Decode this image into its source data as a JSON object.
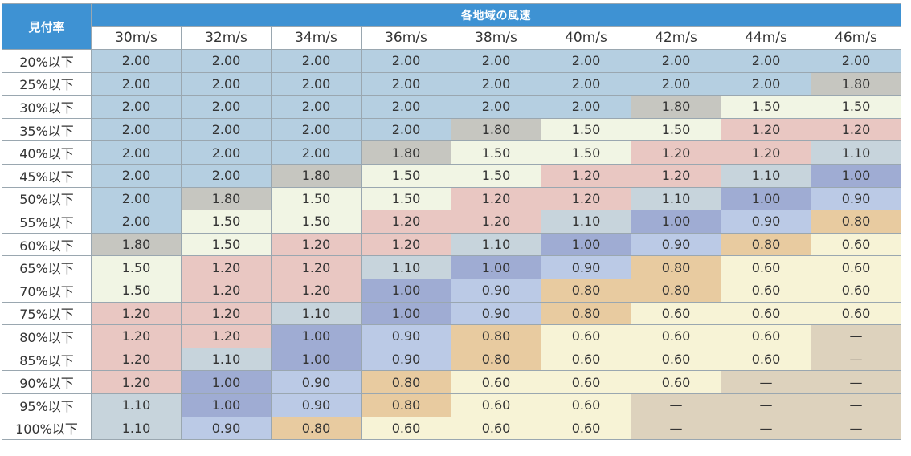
{
  "header": {
    "corner_label": "見付率",
    "group_label": "各地域の風速",
    "speeds": [
      "30m/s",
      "32m/s",
      "34m/s",
      "36m/s",
      "38m/s",
      "40m/s",
      "42m/s",
      "44m/s",
      "46m/s"
    ]
  },
  "colors": {
    "2.00": "#b5cfe1",
    "1.80": "#c6c6c0",
    "1.50": "#f1f5e4",
    "1.20": "#e9c7c2",
    "1.10": "#c7d4dc",
    "1.00": "#9facd3",
    "0.90": "#bbcae6",
    "0.80": "#e8cba0",
    "0.60": "#f7f3d6",
    "—": "#ddd2bd"
  },
  "rows": [
    {
      "label": "20%以下",
      "values": [
        "2.00",
        "2.00",
        "2.00",
        "2.00",
        "2.00",
        "2.00",
        "2.00",
        "2.00",
        "2.00"
      ]
    },
    {
      "label": "25%以下",
      "values": [
        "2.00",
        "2.00",
        "2.00",
        "2.00",
        "2.00",
        "2.00",
        "2.00",
        "2.00",
        "1.80"
      ]
    },
    {
      "label": "30%以下",
      "values": [
        "2.00",
        "2.00",
        "2.00",
        "2.00",
        "2.00",
        "2.00",
        "1.80",
        "1.50",
        "1.50"
      ]
    },
    {
      "label": "35%以下",
      "values": [
        "2.00",
        "2.00",
        "2.00",
        "2.00",
        "1.80",
        "1.50",
        "1.50",
        "1.20",
        "1.20"
      ]
    },
    {
      "label": "40%以下",
      "values": [
        "2.00",
        "2.00",
        "2.00",
        "1.80",
        "1.50",
        "1.50",
        "1.20",
        "1.20",
        "1.10"
      ]
    },
    {
      "label": "45%以下",
      "values": [
        "2.00",
        "2.00",
        "1.80",
        "1.50",
        "1.50",
        "1.20",
        "1.20",
        "1.10",
        "1.00"
      ]
    },
    {
      "label": "50%以下",
      "values": [
        "2.00",
        "1.80",
        "1.50",
        "1.50",
        "1.20",
        "1.20",
        "1.10",
        "1.00",
        "0.90"
      ]
    },
    {
      "label": "55%以下",
      "values": [
        "2.00",
        "1.50",
        "1.50",
        "1.20",
        "1.20",
        "1.10",
        "1.00",
        "0.90",
        "0.80"
      ]
    },
    {
      "label": "60%以下",
      "values": [
        "1.80",
        "1.50",
        "1.20",
        "1.20",
        "1.10",
        "1.00",
        "0.90",
        "0.80",
        "0.60"
      ]
    },
    {
      "label": "65%以下",
      "values": [
        "1.50",
        "1.20",
        "1.20",
        "1.10",
        "1.00",
        "0.90",
        "0.80",
        "0.60",
        "0.60"
      ]
    },
    {
      "label": "70%以下",
      "values": [
        "1.50",
        "1.20",
        "1.20",
        "1.00",
        "0.90",
        "0.80",
        "0.80",
        "0.60",
        "0.60"
      ]
    },
    {
      "label": "75%以下",
      "values": [
        "1.20",
        "1.20",
        "1.10",
        "1.00",
        "0.90",
        "0.80",
        "0.60",
        "0.60",
        "0.60"
      ]
    },
    {
      "label": "80%以下",
      "values": [
        "1.20",
        "1.20",
        "1.00",
        "0.90",
        "0.80",
        "0.60",
        "0.60",
        "0.60",
        "—"
      ]
    },
    {
      "label": "85%以下",
      "values": [
        "1.20",
        "1.10",
        "1.00",
        "0.90",
        "0.80",
        "0.60",
        "0.60",
        "0.60",
        "—"
      ]
    },
    {
      "label": "90%以下",
      "values": [
        "1.20",
        "1.00",
        "0.90",
        "0.80",
        "0.60",
        "0.60",
        "0.60",
        "—",
        "—"
      ]
    },
    {
      "label": "95%以下",
      "values": [
        "1.10",
        "1.00",
        "0.90",
        "0.80",
        "0.60",
        "0.60",
        "—",
        "—",
        "—"
      ]
    },
    {
      "label": "100%以下",
      "values": [
        "1.10",
        "0.90",
        "0.80",
        "0.60",
        "0.60",
        "0.60",
        "—",
        "—",
        "—"
      ]
    }
  ]
}
